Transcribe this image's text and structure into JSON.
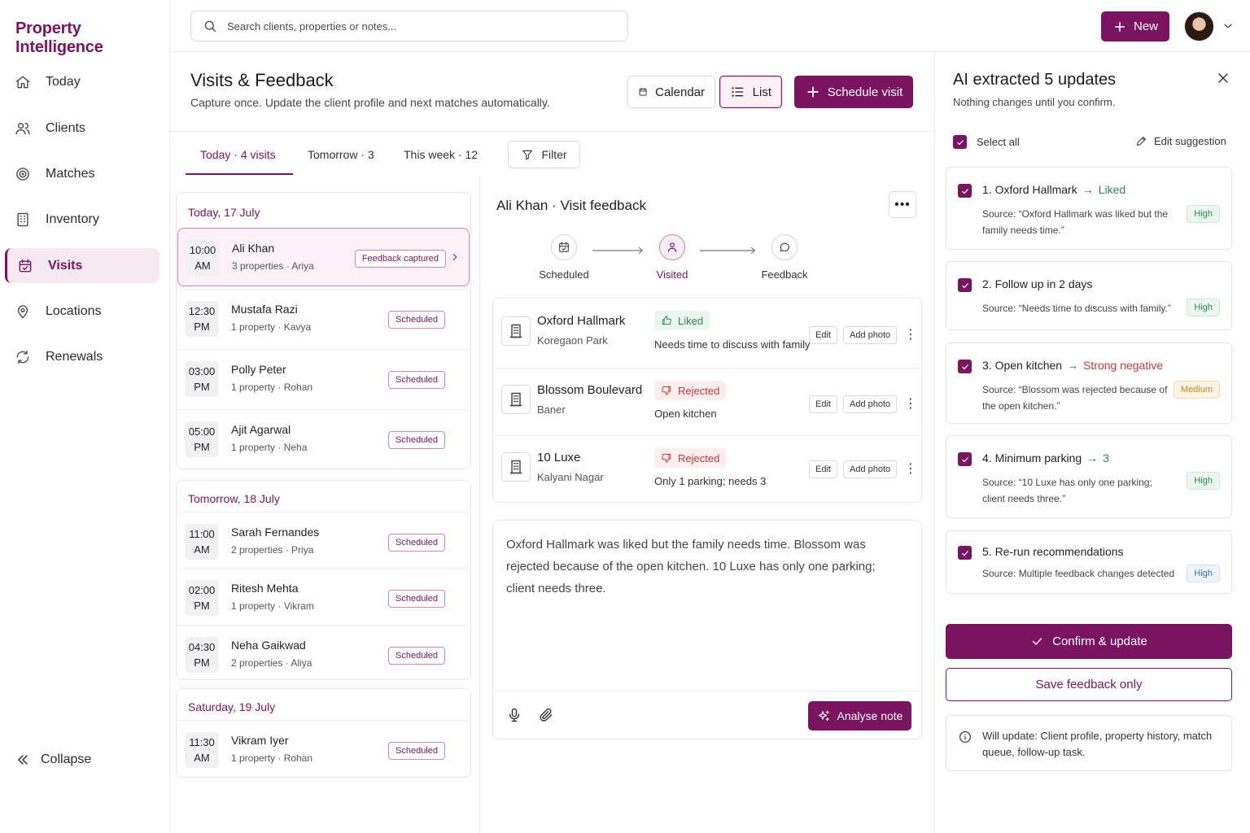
{
  "brand": "Property Intelligence",
  "nav": {
    "items": [
      {
        "label": "Today",
        "icon": "home-icon"
      },
      {
        "label": "Clients",
        "icon": "users-icon"
      },
      {
        "label": "Matches",
        "icon": "target-icon"
      },
      {
        "label": "Inventory",
        "icon": "building-icon"
      },
      {
        "label": "Visits",
        "icon": "calendar-check-icon"
      },
      {
        "label": "Locations",
        "icon": "map-pin-icon"
      },
      {
        "label": "Renewals",
        "icon": "refresh-icon"
      }
    ],
    "active": "Visits",
    "collapse": "Collapse"
  },
  "topbar": {
    "search_placeholder": "Search clients, properties or notes...",
    "new_label": "New"
  },
  "page": {
    "title": "Visits & Feedback",
    "subtitle": "Capture once. Update the client profile and next matches automatically.",
    "calendar_label": "Calendar",
    "list_label": "List",
    "schedule_label": "Schedule visit"
  },
  "tabs": [
    {
      "label": "Today",
      "count": "4 visits"
    },
    {
      "label": "Tomorrow",
      "count": "3"
    },
    {
      "label": "This week",
      "count": "12"
    }
  ],
  "filter_label": "Filter",
  "visit_groups": [
    {
      "date": "Today, 17 July",
      "visits": [
        {
          "time1": "10:00",
          "time2": "AM",
          "name": "Ali Khan",
          "props": "3 properties",
          "agent": "Ariya",
          "status": "Feedback captured"
        },
        {
          "time1": "12:30",
          "time2": "PM",
          "name": "Mustafa Razi",
          "props": "1 property",
          "agent": "Kavya",
          "status": "Scheduled"
        },
        {
          "time1": "03:00",
          "time2": "PM",
          "name": "Polly Peter",
          "props": "1 property",
          "agent": "Rohan",
          "status": "Scheduled"
        },
        {
          "time1": "05:00",
          "time2": "PM",
          "name": "Ajit Agarwal",
          "props": "1 property",
          "agent": "Neha",
          "status": "Scheduled"
        }
      ]
    },
    {
      "date": "Tomorrow, 18 July",
      "visits": [
        {
          "time1": "11:00",
          "time2": "AM",
          "name": "Sarah Fernandes",
          "props": "2 properties",
          "agent": "Priya",
          "status": "Scheduled"
        },
        {
          "time1": "02:00",
          "time2": "PM",
          "name": "Ritesh Mehta",
          "props": "1 property",
          "agent": "Vikram",
          "status": "Scheduled"
        },
        {
          "time1": "04:30",
          "time2": "PM",
          "name": "Neha Gaikwad",
          "props": "2 properties",
          "agent": "Aliya",
          "status": "Scheduled"
        }
      ]
    },
    {
      "date": "Saturday, 19 July",
      "visits": [
        {
          "time1": "11:30",
          "time2": "AM",
          "name": "Vikram Iyer",
          "props": "1 property",
          "agent": "Rohan",
          "status": "Scheduled"
        }
      ]
    }
  ],
  "detail": {
    "client": "Ali Khan",
    "title_suffix": "Visit feedback",
    "steps": [
      "Scheduled",
      "Visited",
      "Feedback"
    ],
    "properties": [
      {
        "name": "Oxford Hallmark",
        "area": "Koregaon Park",
        "status": "Liked",
        "note": "Needs time to discuss with family"
      },
      {
        "name": "Blossom Boulevard",
        "area": "Baner",
        "status": "Rejected",
        "note": "Open kitchen"
      },
      {
        "name": "10 Luxe",
        "area": "Kalyani Nagar",
        "status": "Rejected",
        "note": "Only 1 parking; needs 3"
      }
    ],
    "edit_label": "Edit",
    "add_photo_label": "Add photo",
    "note_text": "Oxford Hallmark was liked but the family needs time. Blossom was rejected because of the open kitchen. 10 Luxe has only one parking; client needs three.",
    "analyse_label": "Analyse note"
  },
  "ai_panel": {
    "title": "AI extracted 5 updates",
    "subtitle": "Nothing changes until you confirm.",
    "select_all": "Select all",
    "edit_suggestion": "Edit suggestion",
    "updates": [
      {
        "title": "1. Oxford Hallmark",
        "value": "Liked",
        "source": "Source: “Oxford Hallmark was liked but the family needs time.”",
        "priority": "High"
      },
      {
        "title": "2. Follow up in 2 days",
        "value": "",
        "source": "Source: “Needs time to discuss with family.”",
        "priority": "High"
      },
      {
        "title": "3. Open kitchen",
        "value": "Strong negative",
        "source": "Source: “Blossom was rejected because of the open kitchen.”",
        "priority": "Medium"
      },
      {
        "title": "4. Minimum parking",
        "value": "3",
        "source": "Source: “10 Luxe has only one parking; client needs three.”",
        "priority": "High"
      },
      {
        "title": "5. Re-run recommendations",
        "value": "",
        "source": "Source: Multiple feedback changes detected",
        "priority": "High"
      }
    ],
    "confirm_label": "Confirm & update",
    "save_label": "Save feedback only",
    "will_update": "Will update: Client profile, property history, match queue, follow-up task."
  },
  "colors": {
    "accent": "#7b1460",
    "positive": "#2e8a4a",
    "negative": "#c43a3a",
    "medium": "#c78522"
  }
}
